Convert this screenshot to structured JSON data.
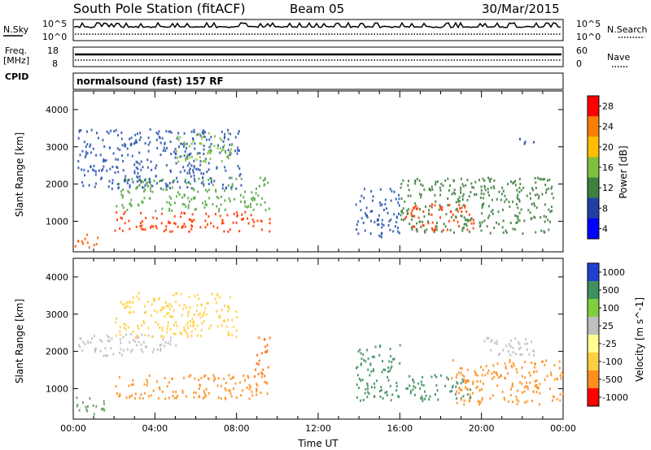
{
  "header": {
    "station": "South Pole Station (fitACF)",
    "beam": "Beam 05",
    "date": "30/Mar/2015"
  },
  "top_panels": {
    "nsky_label": "N.Sky",
    "nsky_ticks": [
      "10^5",
      "10^0"
    ],
    "nsearch_label": "N.Search",
    "nsearch_ticks": [
      "10^5",
      "10^0"
    ],
    "freq_label_1": "Freq.",
    "freq_label_2": "[MHz]",
    "freq_ticks": [
      "18",
      "8"
    ],
    "nave_label": "Nave",
    "nave_ticks": [
      "60",
      "0"
    ],
    "cpid_label": "CPID",
    "cpid_value": "normalsound (fast) 157 RF"
  },
  "chart_data": [
    {
      "type": "heatmap",
      "panel": "power",
      "ylabel": "Slant Range [km]",
      "xlabel": "",
      "y_ticks": [
        "1000",
        "2000",
        "3000",
        "4000"
      ],
      "ylim": [
        180,
        4500
      ],
      "colorbar_label": "Power [dB]",
      "colorbar_ticks": [
        "4",
        "8",
        "12",
        "16",
        "20",
        "24",
        "28"
      ],
      "colorbar_colors": [
        "#0000ff",
        "#1f3fa6",
        "#3f7f3f",
        "#7fbf3f",
        "#ffbf00",
        "#ff7f00",
        "#ff0000"
      ],
      "regions": [
        {
          "t0": 0.0,
          "t1": 1.2,
          "r0": 300,
          "r1": 700,
          "color": "#ff5a00"
        },
        {
          "t0": 2.0,
          "t1": 9.6,
          "r0": 750,
          "r1": 1300,
          "color": "#ff3a00"
        },
        {
          "t0": 2.0,
          "t1": 9.6,
          "r0": 1300,
          "r1": 2200,
          "color": "#5aa84a"
        },
        {
          "t0": 0.2,
          "t1": 8.2,
          "r0": 1900,
          "r1": 3500,
          "color": "#2a55b0"
        },
        {
          "t0": 5.0,
          "t1": 7.8,
          "r0": 2600,
          "r1": 3400,
          "color": "#7fbf3f"
        },
        {
          "t0": 13.8,
          "t1": 16.0,
          "r0": 600,
          "r1": 1900,
          "color": "#2a55b0"
        },
        {
          "t0": 16.2,
          "t1": 19.6,
          "r0": 750,
          "r1": 1500,
          "color": "#ff3a00"
        },
        {
          "t0": 16.0,
          "t1": 23.6,
          "r0": 700,
          "r1": 2200,
          "color": "#3f7f3f"
        },
        {
          "t0": 21.8,
          "t1": 22.6,
          "r0": 3100,
          "r1": 3300,
          "color": "#1f3fa6"
        }
      ]
    },
    {
      "type": "heatmap",
      "panel": "velocity",
      "ylabel": "Slant Range [km]",
      "xlabel": "Time UT",
      "x_ticks": [
        "00:00",
        "04:00",
        "08:00",
        "12:00",
        "16:00",
        "20:00",
        "00:00"
      ],
      "y_ticks": [
        "1000",
        "2000",
        "3000",
        "4000"
      ],
      "ylim": [
        180,
        4500
      ],
      "colorbar_label": "Velocity [m s^-1]",
      "colorbar_ticks": [
        "1000",
        "500",
        "100",
        "25",
        "-25",
        "-100",
        "-500",
        "-1000"
      ],
      "colorbar_colors": [
        "#2040d0",
        "#3f8f5f",
        "#7fcf3f",
        "#bfbfbf",
        "#ffff90",
        "#ffcf3f",
        "#ff8f1f",
        "#ff0000"
      ],
      "regions": [
        {
          "t0": 0.0,
          "t1": 1.5,
          "r0": 300,
          "r1": 800,
          "color": "#5f9f5f"
        },
        {
          "t0": 2.0,
          "t1": 9.6,
          "r0": 750,
          "r1": 1400,
          "color": "#ff8f1f"
        },
        {
          "t0": 0.2,
          "t1": 5.0,
          "r0": 1900,
          "r1": 2500,
          "color": "#bfbfbf"
        },
        {
          "t0": 2.0,
          "t1": 8.0,
          "r0": 2400,
          "r1": 3600,
          "color": "#ffcf3f"
        },
        {
          "t0": 8.8,
          "t1": 9.6,
          "r0": 1300,
          "r1": 2400,
          "color": "#ff6f10"
        },
        {
          "t0": 13.8,
          "t1": 16.0,
          "r0": 700,
          "r1": 2200,
          "color": "#3f8f5f"
        },
        {
          "t0": 16.2,
          "t1": 19.5,
          "r0": 700,
          "r1": 1400,
          "color": "#3f8f5f"
        },
        {
          "t0": 18.5,
          "t1": 24.0,
          "r0": 600,
          "r1": 1800,
          "color": "#ff8f1f"
        },
        {
          "t0": 20.0,
          "t1": 23.0,
          "r0": 1900,
          "r1": 2400,
          "color": "#bfbfbf"
        }
      ]
    }
  ]
}
